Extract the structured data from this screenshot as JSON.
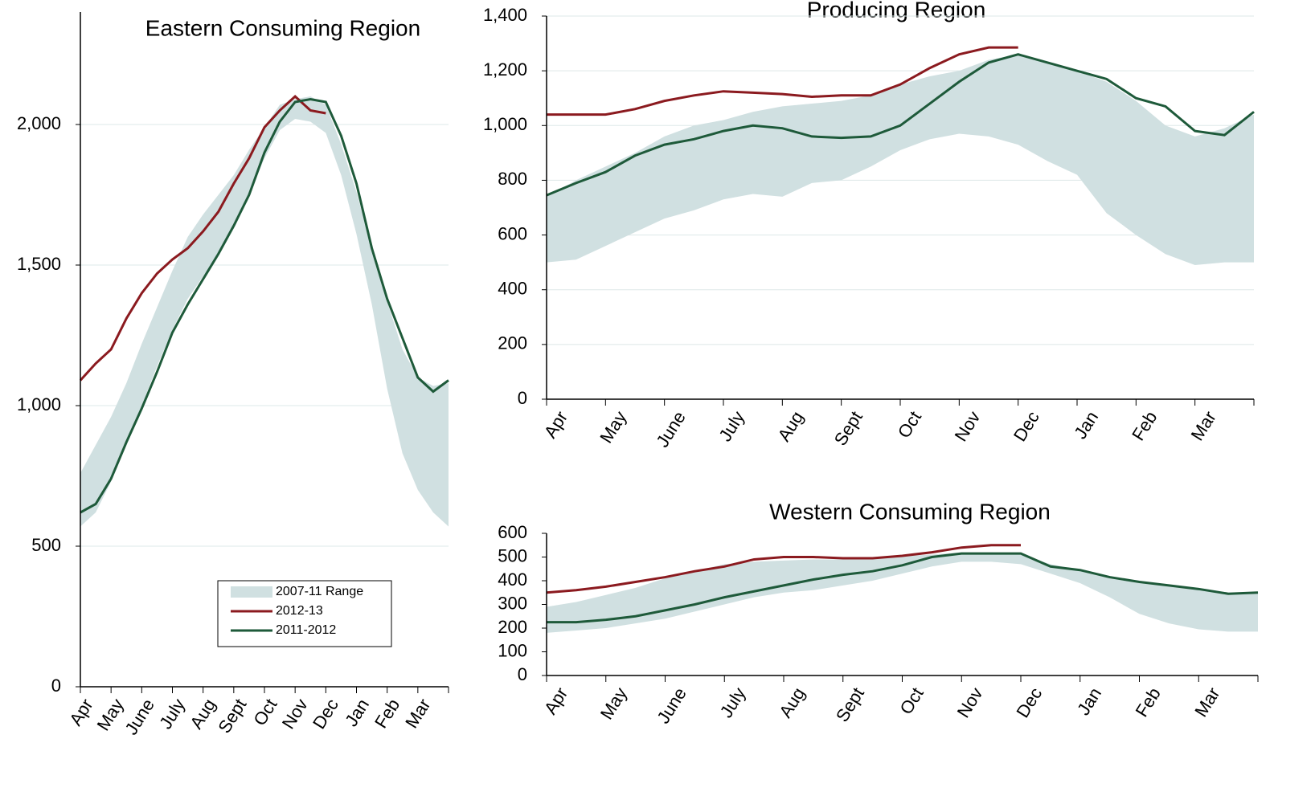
{
  "chart_data": [
    {
      "type": "line",
      "title": "Eastern Consuming Region",
      "categories": [
        "Apr",
        null,
        "May",
        null,
        "June",
        null,
        "July",
        null,
        "Aug",
        null,
        "Sept",
        null,
        "Oct",
        null,
        "Nov",
        null,
        "Dec",
        null,
        "Jan",
        null,
        "Feb",
        null,
        "Mar",
        null,
        null
      ],
      "ylim": [
        0,
        2400
      ],
      "yticks": [
        0,
        500,
        {
          "value": 1000,
          "label": "1,000"
        },
        {
          "value": 1500,
          "label": "1,500"
        },
        {
          "value": 2000,
          "label": "2,000"
        }
      ],
      "grid": true,
      "legend": "lower center",
      "series": [
        {
          "name": "2007-11 Range",
          "color": "#d0e0e1",
          "high": [
            760,
            860,
            960,
            1080,
            1220,
            1350,
            1480,
            1600,
            1680,
            1750,
            1820,
            1910,
            1990,
            2070,
            2090,
            2100,
            2070,
            1930,
            1760,
            1560,
            1370,
            1200,
            1100,
            1070,
            1080
          ],
          "low": [
            570,
            620,
            730,
            860,
            1000,
            1140,
            1270,
            1380,
            1460,
            1540,
            1630,
            1750,
            1880,
            1980,
            2020,
            2010,
            1970,
            1820,
            1610,
            1360,
            1060,
            830,
            700,
            620,
            570
          ]
        },
        {
          "name": "2012-13",
          "color": "#8b1a1f",
          "values": [
            1090,
            1150,
            1200,
            1310,
            1400,
            1470,
            1520,
            1560,
            1620,
            1690,
            1790,
            1880,
            1990,
            2050,
            2100,
            2050,
            2040,
            null,
            null,
            null,
            null,
            null,
            null,
            null,
            null
          ]
        },
        {
          "name": "2011-2012",
          "color": "#1e5a3a",
          "values": [
            620,
            650,
            740,
            870,
            990,
            1120,
            1260,
            1360,
            1450,
            1540,
            1640,
            1750,
            1900,
            2010,
            2080,
            2090,
            2080,
            1960,
            1790,
            1560,
            1380,
            1240,
            1100,
            1050,
            1090
          ]
        }
      ]
    },
    {
      "type": "line",
      "title": "Producing Region",
      "categories": [
        "Apr",
        null,
        "May",
        null,
        "June",
        null,
        "July",
        null,
        "Aug",
        null,
        "Sept",
        null,
        "Oct",
        null,
        "Nov",
        null,
        "Dec",
        null,
        "Jan",
        null,
        "Feb",
        null,
        "Mar",
        null,
        null
      ],
      "ylim": [
        0,
        1400
      ],
      "yticks": [
        0,
        200,
        400,
        600,
        800,
        {
          "value": 1000,
          "label": "1,000"
        },
        {
          "value": 1200,
          "label": "1,200"
        },
        {
          "value": 1400,
          "label": "1,400"
        }
      ],
      "grid": true,
      "series": [
        {
          "color": "#d0e0e1",
          "high": [
            740,
            800,
            850,
            900,
            960,
            1000,
            1020,
            1050,
            1070,
            1080,
            1090,
            1110,
            1150,
            1180,
            1200,
            1240,
            1260,
            1230,
            1200,
            1160,
            1090,
            1000,
            960,
            990,
            1040
          ],
          "low": [
            500,
            510,
            560,
            610,
            660,
            690,
            730,
            750,
            740,
            790,
            800,
            850,
            910,
            950,
            970,
            960,
            930,
            870,
            820,
            680,
            600,
            530,
            490,
            500,
            500
          ]
        },
        {
          "color": "#8b1a1f",
          "values": [
            1040,
            1040,
            1040,
            1060,
            1090,
            1110,
            1125,
            1120,
            1115,
            1105,
            1110,
            1110,
            1150,
            1210,
            1260,
            1285,
            1285,
            null,
            null,
            null,
            null,
            null,
            null,
            null,
            null
          ]
        },
        {
          "color": "#1e5a3a",
          "values": [
            745,
            790,
            830,
            890,
            930,
            950,
            980,
            1000,
            990,
            960,
            955,
            960,
            1000,
            1080,
            1160,
            1230,
            1260,
            1230,
            1200,
            1170,
            1100,
            1070,
            980,
            965,
            1050
          ]
        }
      ]
    },
    {
      "type": "line",
      "title": "Western Consuming Region",
      "categories": [
        "Apr",
        null,
        "May",
        null,
        "June",
        null,
        "July",
        null,
        "Aug",
        null,
        "Sept",
        null,
        "Oct",
        null,
        "Nov",
        null,
        "Dec",
        null,
        "Jan",
        null,
        "Feb",
        null,
        "Mar",
        null,
        null
      ],
      "ylim": [
        0,
        600
      ],
      "yticks": [
        0,
        100,
        200,
        300,
        400,
        500,
        600
      ],
      "grid": false,
      "series": [
        {
          "color": "#d0e0e1",
          "high": [
            290,
            310,
            340,
            370,
            410,
            440,
            470,
            480,
            485,
            490,
            490,
            500,
            505,
            510,
            520,
            520,
            510,
            470,
            445,
            410,
            390,
            380,
            370,
            350,
            350
          ],
          "low": [
            180,
            190,
            200,
            220,
            240,
            270,
            300,
            330,
            350,
            360,
            380,
            400,
            430,
            460,
            480,
            480,
            470,
            430,
            390,
            330,
            260,
            220,
            195,
            185,
            185
          ]
        },
        {
          "color": "#8b1a1f",
          "values": [
            350,
            360,
            375,
            395,
            415,
            440,
            460,
            490,
            500,
            500,
            495,
            495,
            505,
            520,
            540,
            550,
            550,
            null,
            null,
            null,
            null,
            null,
            null,
            null,
            null
          ]
        },
        {
          "color": "#1e5a3a",
          "values": [
            225,
            225,
            235,
            250,
            275,
            300,
            330,
            355,
            380,
            405,
            425,
            440,
            465,
            500,
            515,
            515,
            515,
            460,
            445,
            415,
            395,
            380,
            365,
            345,
            350
          ]
        }
      ]
    }
  ]
}
